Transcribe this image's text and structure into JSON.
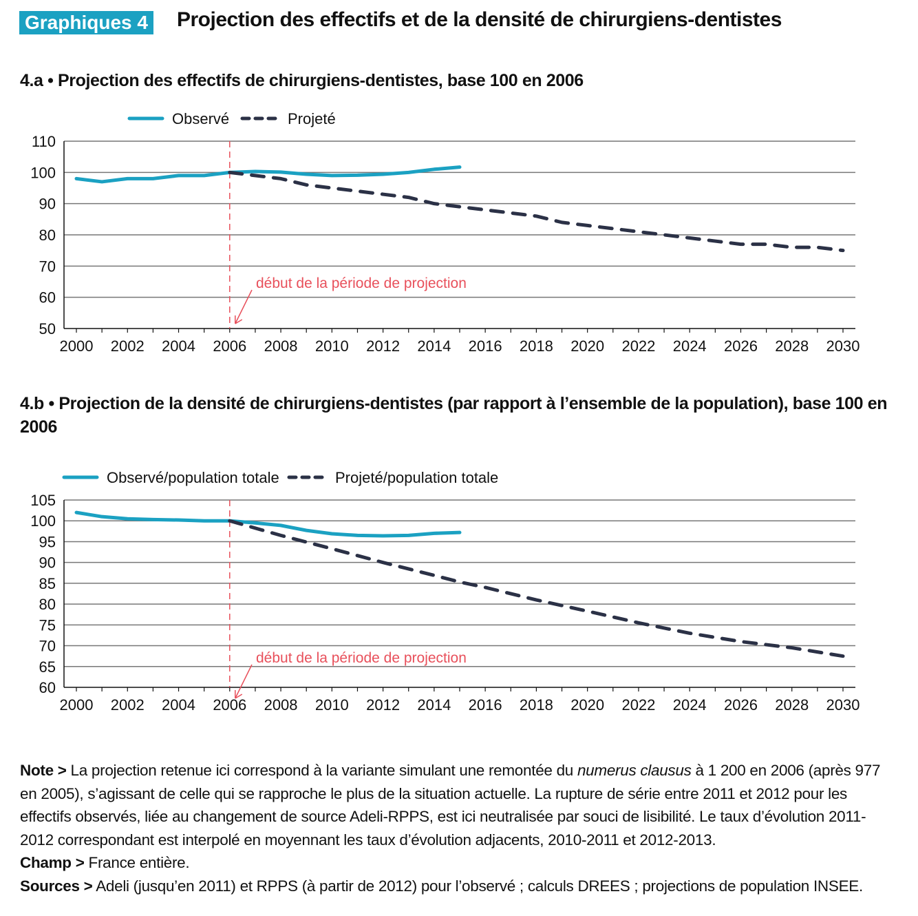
{
  "header": {
    "badge": "Graphiques 4",
    "title": "Projection des effectifs et de la densité de chirurgiens-dentistes"
  },
  "colors": {
    "observed": "#1ba1c2",
    "projected": "#2b3146",
    "annotation": "#e8505b",
    "badge": "#1ba1c2"
  },
  "chart_data": [
    {
      "type": "line",
      "title": "4.a • Projection des effectifs de chirurgiens-dentistes, base 100 en 2006",
      "xlim": [
        2000,
        2030
      ],
      "ylim": [
        50,
        110
      ],
      "x_ticks": [
        2000,
        2002,
        2004,
        2006,
        2008,
        2010,
        2012,
        2014,
        2016,
        2018,
        2020,
        2022,
        2024,
        2026,
        2028,
        2030
      ],
      "y_ticks": [
        50,
        60,
        70,
        80,
        90,
        100,
        110
      ],
      "grid": "horizontal",
      "legend": "top-left",
      "annotation": {
        "text": "début de la période de projection",
        "x": 2006
      },
      "series": [
        {
          "name": "Observé",
          "style": "solid",
          "x": [
            2000,
            2001,
            2002,
            2003,
            2004,
            2005,
            2006,
            2007,
            2008,
            2009,
            2010,
            2011,
            2012,
            2013,
            2014,
            2015
          ],
          "values": [
            98,
            97,
            98,
            98,
            99,
            99,
            100,
            100.3,
            100.1,
            99.4,
            99,
            99.1,
            99.4,
            100,
            101,
            101.7
          ]
        },
        {
          "name": "Projeté",
          "style": "dashed",
          "x": [
            2006,
            2007,
            2008,
            2009,
            2010,
            2011,
            2012,
            2013,
            2014,
            2015,
            2016,
            2017,
            2018,
            2019,
            2020,
            2021,
            2022,
            2023,
            2024,
            2025,
            2026,
            2027,
            2028,
            2029,
            2030
          ],
          "values": [
            100,
            99,
            98,
            96,
            95,
            94,
            93,
            92,
            90,
            89,
            88,
            87,
            86,
            84,
            83,
            82,
            81,
            80,
            79,
            78,
            77,
            77,
            76,
            76,
            75
          ]
        }
      ]
    },
    {
      "type": "line",
      "title": "4.b • Projection de la densité de chirurgiens-dentistes (par rapport à l’ensemble de la population), base 100 en 2006",
      "xlim": [
        2000,
        2030
      ],
      "ylim": [
        60,
        105
      ],
      "x_ticks": [
        2000,
        2002,
        2004,
        2006,
        2008,
        2010,
        2012,
        2014,
        2016,
        2018,
        2020,
        2022,
        2024,
        2026,
        2028,
        2030
      ],
      "y_ticks": [
        60,
        65,
        70,
        75,
        80,
        85,
        90,
        95,
        100,
        105
      ],
      "grid": "horizontal",
      "legend": "top-left",
      "annotation": {
        "text": "début de la période de projection",
        "x": 2006
      },
      "series": [
        {
          "name": "Observé/population totale",
          "style": "solid",
          "x": [
            2000,
            2001,
            2002,
            2003,
            2004,
            2005,
            2006,
            2007,
            2008,
            2009,
            2010,
            2011,
            2012,
            2013,
            2014,
            2015
          ],
          "values": [
            102,
            101,
            100.5,
            100.3,
            100.2,
            100,
            100,
            99.5,
            98.9,
            97.7,
            96.9,
            96.5,
            96.4,
            96.5,
            97,
            97.2
          ]
        },
        {
          "name": "Projeté/population totale",
          "style": "dashed",
          "x": [
            2006,
            2008,
            2010,
            2012,
            2014,
            2015,
            2016,
            2018,
            2020,
            2022,
            2024,
            2026,
            2028,
            2030
          ],
          "values": [
            100,
            96.5,
            93.3,
            90,
            86.9,
            85.3,
            84,
            81,
            78.3,
            75.5,
            73,
            71,
            69.5,
            67.5
          ]
        }
      ]
    }
  ],
  "notes": {
    "note_label": "Note >",
    "note_a": " La projection retenue ici correspond à la variante simulant une remontée du ",
    "note_italic": "numerus clausus",
    "note_b": " à 1 200 en 2006 (après 977 en 2005), s’agissant de celle qui se rapproche le plus de la situation actuelle. La rupture de série entre 2011 et 2012 pour les effectifs observés, liée au changement de source Adeli-RPPS, est ici neutralisée par souci de lisibilité. Le taux d’évolution 2011-2012 correspondant est interpolé en moyennant les taux d’évolution adjacents, 2010-2011 et 2012-2013.",
    "champ_label": "Champ >",
    "champ": " France entière.",
    "sources_label": "Sources >",
    "sources": " Adeli (jusqu’en 2011) et RPPS (à partir de 2012) pour l’observé ; calculs DREES ; projections de population INSEE."
  }
}
